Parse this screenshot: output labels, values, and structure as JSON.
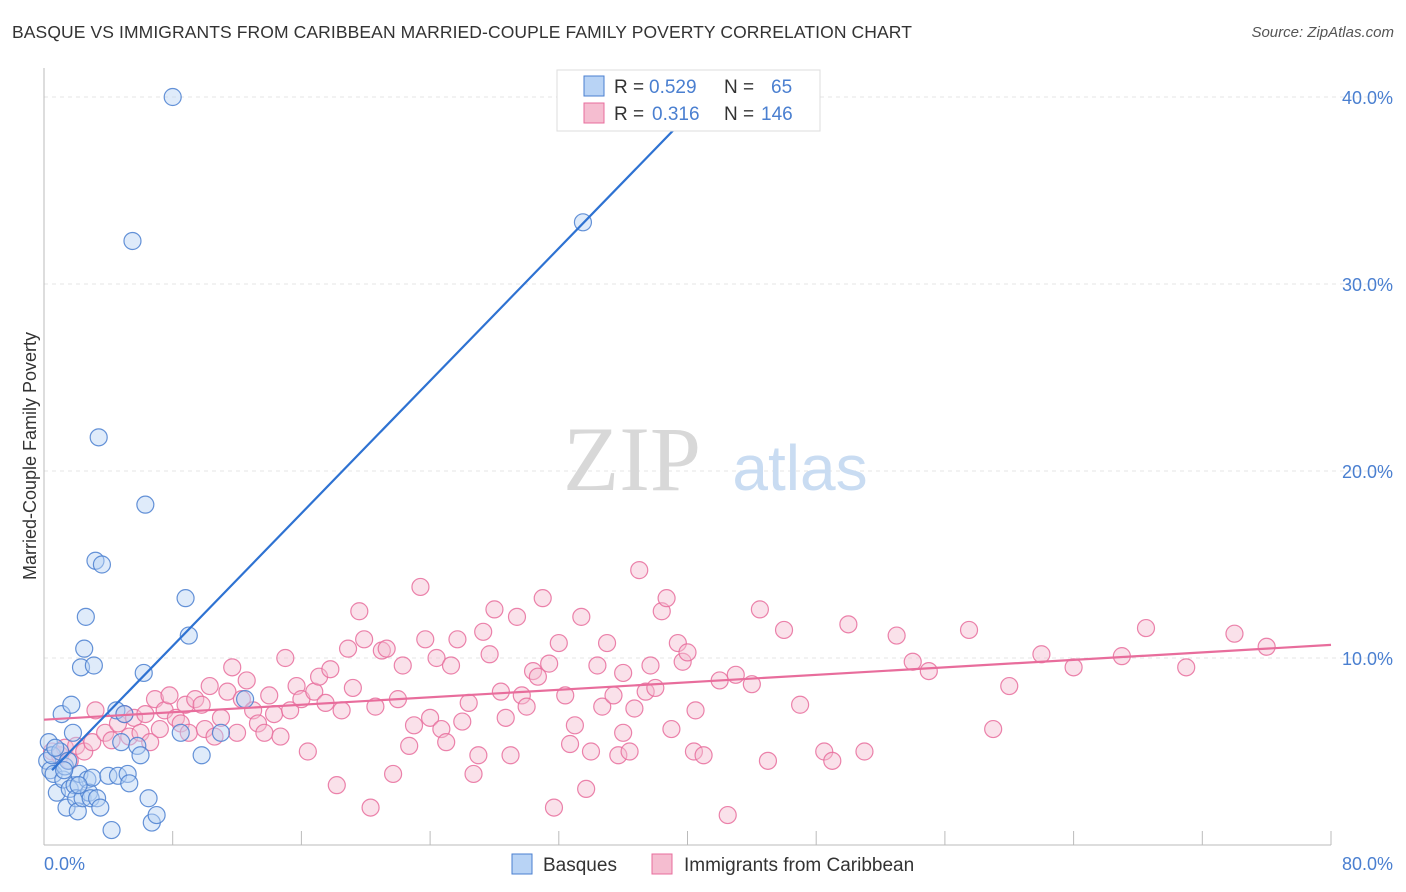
{
  "title": "BASQUE VS IMMIGRANTS FROM CARIBBEAN MARRIED-COUPLE FAMILY POVERTY CORRELATION CHART",
  "source": "Source: ZipAtlas.com",
  "watermark": {
    "zip": "ZIP",
    "atlas": "atlas"
  },
  "colors": {
    "blue": "#4a7fd0",
    "blue_line": "#2e72d2",
    "blue_fill": "#b8d3f5",
    "pink": "#e86d9c",
    "pink_fill": "#f5bdd0",
    "grid": "#e4e4e4"
  },
  "legend_box": {
    "rows": [
      {
        "r_label": "R =",
        "r_value": "0.529",
        "n_label": "N =",
        "n_value": "65",
        "color": "blue"
      },
      {
        "r_label": "R =",
        "r_value": "0.316",
        "n_label": "N =",
        "n_value": "146",
        "color": "pink"
      }
    ]
  },
  "chart_data": {
    "type": "scatter",
    "title": "BASQUE VS IMMIGRANTS FROM CARIBBEAN MARRIED-COUPLE FAMILY POVERTY CORRELATION CHART",
    "xlabel": "",
    "ylabel": "Married-Couple Family Poverty",
    "xlim": [
      0,
      80
    ],
    "ylim": [
      0,
      40
    ],
    "x_tick_labels": [
      "0.0%",
      "80.0%"
    ],
    "y_ticks": [
      10,
      20,
      30,
      40
    ],
    "y_tick_labels": [
      "10.0%",
      "20.0%",
      "30.0%",
      "40.0%"
    ],
    "grid": true,
    "legend_placement": "bottom-center",
    "series": [
      {
        "name": "Basques",
        "color": "#4a7fd0",
        "r": 0.529,
        "n": 65,
        "trendline": {
          "x": [
            0.5,
            40
          ],
          "y": [
            4.0,
            39.0
          ]
        },
        "points": [
          [
            0.2,
            4.5
          ],
          [
            0.3,
            5.5
          ],
          [
            0.4,
            4.0
          ],
          [
            0.5,
            4.8
          ],
          [
            0.6,
            3.8
          ],
          [
            0.8,
            2.8
          ],
          [
            1.0,
            5.0
          ],
          [
            1.1,
            7.0
          ],
          [
            1.2,
            3.5
          ],
          [
            1.3,
            4.2
          ],
          [
            1.4,
            2.0
          ],
          [
            1.5,
            4.5
          ],
          [
            1.6,
            3.0
          ],
          [
            1.7,
            7.5
          ],
          [
            1.8,
            6.0
          ],
          [
            1.9,
            3.2
          ],
          [
            2.0,
            2.5
          ],
          [
            2.1,
            1.8
          ],
          [
            2.2,
            3.8
          ],
          [
            2.3,
            9.5
          ],
          [
            2.4,
            2.5
          ],
          [
            2.5,
            10.5
          ],
          [
            2.6,
            12.2
          ],
          [
            2.7,
            3.5
          ],
          [
            2.8,
            2.8
          ],
          [
            2.9,
            2.5
          ],
          [
            3.0,
            3.6
          ],
          [
            3.1,
            9.6
          ],
          [
            3.2,
            15.2
          ],
          [
            3.3,
            2.5
          ],
          [
            3.4,
            21.8
          ],
          [
            3.6,
            15.0
          ],
          [
            4.0,
            3.7
          ],
          [
            4.2,
            0.8
          ],
          [
            4.5,
            7.2
          ],
          [
            4.6,
            3.7
          ],
          [
            4.8,
            5.5
          ],
          [
            5.0,
            7.0
          ],
          [
            5.2,
            3.8
          ],
          [
            5.3,
            3.3
          ],
          [
            5.5,
            32.3
          ],
          [
            5.8,
            5.3
          ],
          [
            6.0,
            4.8
          ],
          [
            6.2,
            9.2
          ],
          [
            6.3,
            18.2
          ],
          [
            6.5,
            2.5
          ],
          [
            6.7,
            1.2
          ],
          [
            7.0,
            1.6
          ],
          [
            8.0,
            40.0
          ],
          [
            8.5,
            6.0
          ],
          [
            8.8,
            13.2
          ],
          [
            9.0,
            11.2
          ],
          [
            9.8,
            4.8
          ],
          [
            11.0,
            6.0
          ],
          [
            12.5,
            7.8
          ],
          [
            33.5,
            33.3
          ],
          [
            0.7,
            5.2
          ],
          [
            1.25,
            4.0
          ],
          [
            2.15,
            3.2
          ],
          [
            3.5,
            2.0
          ]
        ]
      },
      {
        "name": "Immigrants from Caribbean",
        "color": "#e86d9c",
        "r": 0.316,
        "n": 146,
        "trendline": {
          "x": [
            0,
            80
          ],
          "y": [
            6.7,
            10.7
          ]
        },
        "points": [
          [
            0.5,
            5.0
          ],
          [
            1.0,
            4.8
          ],
          [
            1.3,
            5.2
          ],
          [
            1.6,
            4.5
          ],
          [
            2.0,
            5.3
          ],
          [
            2.5,
            5.0
          ],
          [
            3.0,
            5.5
          ],
          [
            3.2,
            7.2
          ],
          [
            3.8,
            6.0
          ],
          [
            4.2,
            5.6
          ],
          [
            4.6,
            6.5
          ],
          [
            5.0,
            7.0
          ],
          [
            5.3,
            5.8
          ],
          [
            5.6,
            6.8
          ],
          [
            6.0,
            6.0
          ],
          [
            6.3,
            7.0
          ],
          [
            6.6,
            5.5
          ],
          [
            6.9,
            7.8
          ],
          [
            7.2,
            6.2
          ],
          [
            7.5,
            7.2
          ],
          [
            7.8,
            8.0
          ],
          [
            8.2,
            6.8
          ],
          [
            8.5,
            6.5
          ],
          [
            8.8,
            7.5
          ],
          [
            9.0,
            6.0
          ],
          [
            9.4,
            7.8
          ],
          [
            9.8,
            7.5
          ],
          [
            10.0,
            6.2
          ],
          [
            10.3,
            8.5
          ],
          [
            10.6,
            5.8
          ],
          [
            11.0,
            6.8
          ],
          [
            11.4,
            8.2
          ],
          [
            11.7,
            9.5
          ],
          [
            12.0,
            6.0
          ],
          [
            12.3,
            7.8
          ],
          [
            12.6,
            8.8
          ],
          [
            13.0,
            7.2
          ],
          [
            13.3,
            6.5
          ],
          [
            13.7,
            6.0
          ],
          [
            14.0,
            8.0
          ],
          [
            14.3,
            7.0
          ],
          [
            14.7,
            5.8
          ],
          [
            15.0,
            10.0
          ],
          [
            15.3,
            7.2
          ],
          [
            15.7,
            8.5
          ],
          [
            16.0,
            7.8
          ],
          [
            16.4,
            5.0
          ],
          [
            16.8,
            8.2
          ],
          [
            17.1,
            9.0
          ],
          [
            17.5,
            7.6
          ],
          [
            17.8,
            9.4
          ],
          [
            18.2,
            3.2
          ],
          [
            18.5,
            7.2
          ],
          [
            18.9,
            10.5
          ],
          [
            19.2,
            8.4
          ],
          [
            19.6,
            12.5
          ],
          [
            19.9,
            11.0
          ],
          [
            20.3,
            2.0
          ],
          [
            20.6,
            7.4
          ],
          [
            21.0,
            10.4
          ],
          [
            21.3,
            10.5
          ],
          [
            21.7,
            3.8
          ],
          [
            22.0,
            7.8
          ],
          [
            22.3,
            9.6
          ],
          [
            22.7,
            5.3
          ],
          [
            23.0,
            6.4
          ],
          [
            23.4,
            13.8
          ],
          [
            23.7,
            11.0
          ],
          [
            24.0,
            6.8
          ],
          [
            24.4,
            10.0
          ],
          [
            24.7,
            6.2
          ],
          [
            25.0,
            5.5
          ],
          [
            25.3,
            9.6
          ],
          [
            25.7,
            11.0
          ],
          [
            26.0,
            6.6
          ],
          [
            26.4,
            7.6
          ],
          [
            26.7,
            3.8
          ],
          [
            27.0,
            4.8
          ],
          [
            27.3,
            11.4
          ],
          [
            27.7,
            10.2
          ],
          [
            28.0,
            12.6
          ],
          [
            28.4,
            8.2
          ],
          [
            28.7,
            6.8
          ],
          [
            29.0,
            4.8
          ],
          [
            29.4,
            12.2
          ],
          [
            29.7,
            8.0
          ],
          [
            30.0,
            7.4
          ],
          [
            30.4,
            9.3
          ],
          [
            30.7,
            9.0
          ],
          [
            31.0,
            13.2
          ],
          [
            31.4,
            9.7
          ],
          [
            31.7,
            2.0
          ],
          [
            32.0,
            10.8
          ],
          [
            32.4,
            8.0
          ],
          [
            32.7,
            5.4
          ],
          [
            33.0,
            6.4
          ],
          [
            33.4,
            12.2
          ],
          [
            33.7,
            3.0
          ],
          [
            34.0,
            5.0
          ],
          [
            34.4,
            9.6
          ],
          [
            34.7,
            7.4
          ],
          [
            35.0,
            10.8
          ],
          [
            35.4,
            8.0
          ],
          [
            35.7,
            4.8
          ],
          [
            36.0,
            9.2
          ],
          [
            36.4,
            5.0
          ],
          [
            36.7,
            7.3
          ],
          [
            37.0,
            14.7
          ],
          [
            37.4,
            8.2
          ],
          [
            37.7,
            9.6
          ],
          [
            38.0,
            8.4
          ],
          [
            38.4,
            12.5
          ],
          [
            38.7,
            13.2
          ],
          [
            39.0,
            6.2
          ],
          [
            39.4,
            10.8
          ],
          [
            39.7,
            9.8
          ],
          [
            40.0,
            10.3
          ],
          [
            40.4,
            5.0
          ],
          [
            41.0,
            4.8
          ],
          [
            42.0,
            8.8
          ],
          [
            43.0,
            9.1
          ],
          [
            44.5,
            12.6
          ],
          [
            45.0,
            4.5
          ],
          [
            46.0,
            11.5
          ],
          [
            47.0,
            7.5
          ],
          [
            48.5,
            5.0
          ],
          [
            49.0,
            4.5
          ],
          [
            50.0,
            11.8
          ],
          [
            51.0,
            5.0
          ],
          [
            53.0,
            11.2
          ],
          [
            54.0,
            9.8
          ],
          [
            55.0,
            9.3
          ],
          [
            57.5,
            11.5
          ],
          [
            59.0,
            6.2
          ],
          [
            60.0,
            8.5
          ],
          [
            62.0,
            10.2
          ],
          [
            64.0,
            9.5
          ],
          [
            67.0,
            10.1
          ],
          [
            68.5,
            11.6
          ],
          [
            71.0,
            9.5
          ],
          [
            74.0,
            11.3
          ],
          [
            76.0,
            10.6
          ],
          [
            36.0,
            6.0
          ],
          [
            40.5,
            7.2
          ],
          [
            42.5,
            1.6
          ],
          [
            44.0,
            8.6
          ]
        ]
      }
    ],
    "bottom_legend": [
      "Basques",
      "Immigrants from Caribbean"
    ]
  }
}
